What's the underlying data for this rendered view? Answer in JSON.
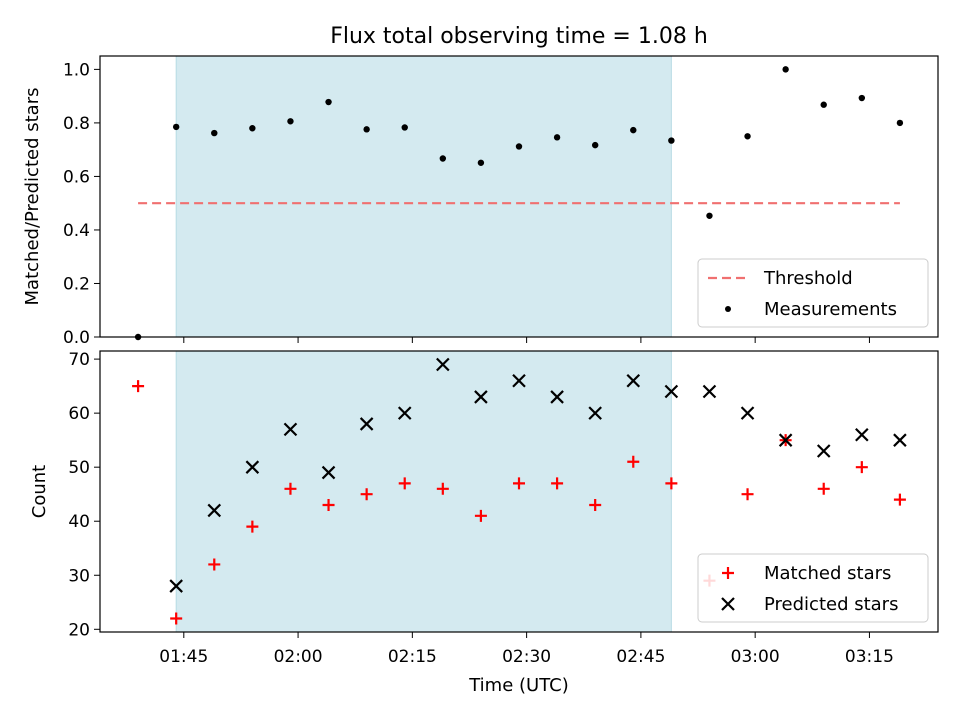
{
  "title": "Flux total observing time = 1.08 h",
  "xlabel": "Time (UTC)",
  "x_ticks": [
    "01:45",
    "02:00",
    "02:15",
    "02:30",
    "02:45",
    "03:00",
    "03:15"
  ],
  "chart_data": [
    {
      "type": "scatter",
      "ylabel": "Matched/Predicted stars",
      "ylim": [
        0.0,
        1.05
      ],
      "xlim": [
        "01:34",
        "03:24"
      ],
      "y_ticks": [
        "0.0",
        "0.2",
        "0.4",
        "0.6",
        "0.8",
        "1.0"
      ],
      "highlight_span": [
        "01:44",
        "02:49"
      ],
      "highlight_color": "#d4eaf0",
      "threshold": {
        "name": "Threshold",
        "value": 0.5,
        "x_range": [
          "01:39",
          "03:19"
        ],
        "color": "#f07070",
        "style": "dashed"
      },
      "series": [
        {
          "name": "Measurements",
          "color": "#000000",
          "marker": "dot",
          "x": [
            "01:39",
            "01:44",
            "01:49",
            "01:54",
            "01:59",
            "02:04",
            "02:09",
            "02:14",
            "02:19",
            "02:24",
            "02:29",
            "02:34",
            "02:39",
            "02:44",
            "02:49",
            "02:54",
            "02:59",
            "03:04",
            "03:09",
            "03:14",
            "03:19"
          ],
          "y": [
            0.0,
            0.785,
            0.762,
            0.78,
            0.806,
            0.878,
            0.776,
            0.783,
            0.667,
            0.651,
            0.712,
            0.746,
            0.717,
            0.773,
            0.734,
            0.453,
            0.75,
            1.0,
            0.868,
            0.893,
            0.8
          ]
        }
      ],
      "legend": {
        "position": "lower-right",
        "entries": [
          "Threshold",
          "Measurements"
        ]
      }
    },
    {
      "type": "scatter",
      "ylabel": "Count",
      "ylim": [
        19.5,
        71.5
      ],
      "xlim": [
        "01:34",
        "03:24"
      ],
      "y_ticks": [
        "20",
        "30",
        "40",
        "50",
        "60",
        "70"
      ],
      "highlight_span": [
        "01:44",
        "02:49"
      ],
      "highlight_color": "#d4eaf0",
      "series": [
        {
          "name": "Matched stars",
          "color": "#ff0000",
          "marker": "plus",
          "x": [
            "01:39",
            "01:44",
            "01:49",
            "01:54",
            "01:59",
            "02:04",
            "02:09",
            "02:14",
            "02:19",
            "02:24",
            "02:29",
            "02:34",
            "02:39",
            "02:44",
            "02:49",
            "02:54",
            "02:59",
            "03:04",
            "03:09",
            "03:14",
            "03:19"
          ],
          "y": [
            65,
            22,
            32,
            39,
            46,
            43,
            45,
            47,
            46,
            41,
            47,
            47,
            43,
            51,
            47,
            29,
            45,
            55,
            46,
            50,
            44
          ]
        },
        {
          "name": "Predicted stars",
          "color": "#000000",
          "marker": "x",
          "x": [
            "01:44",
            "01:49",
            "01:54",
            "01:59",
            "02:04",
            "02:09",
            "02:14",
            "02:19",
            "02:24",
            "02:29",
            "02:34",
            "02:39",
            "02:44",
            "02:49",
            "02:54",
            "02:59",
            "03:04",
            "03:09",
            "03:14",
            "03:19"
          ],
          "y": [
            28,
            42,
            50,
            57,
            49,
            58,
            60,
            69,
            63,
            66,
            63,
            60,
            66,
            64,
            64,
            60,
            55,
            53,
            56,
            55
          ]
        }
      ],
      "legend": {
        "position": "lower-right",
        "entries": [
          "Matched stars",
          "Predicted stars"
        ]
      }
    }
  ]
}
